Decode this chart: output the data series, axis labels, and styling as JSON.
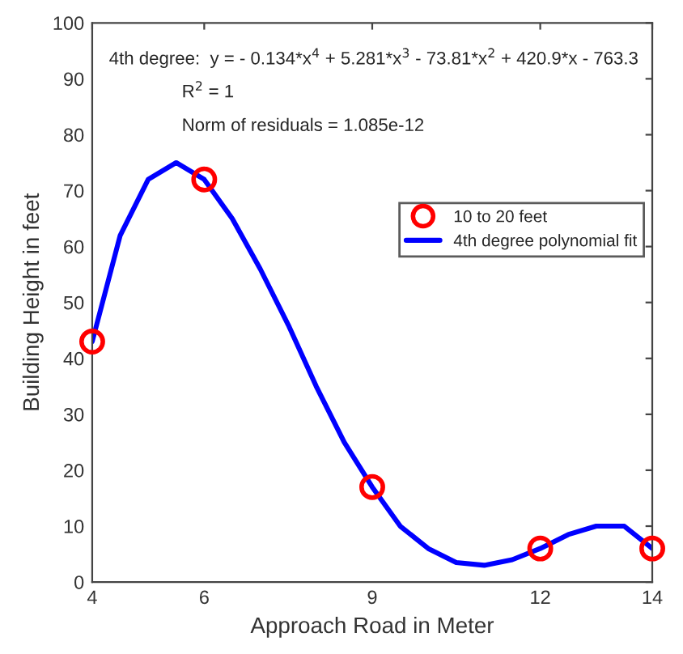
{
  "chart_data": {
    "type": "scatter",
    "xlabel": "Approach Road in Meter",
    "ylabel": "Building Height in feet",
    "xlim": [
      4,
      14
    ],
    "xticks": [
      4,
      6,
      9,
      12,
      14
    ],
    "ylim": [
      0,
      100
    ],
    "yticks": [
      0,
      10,
      20,
      30,
      40,
      50,
      60,
      70,
      80,
      90,
      100
    ],
    "grid": false,
    "legend": "right",
    "annotations": [
      "4th degree:  y = - 0.134*x$^{4}$ + 5.281*x$^{3}$ - 73.81*x$^{2}$ + 420.9*x - 763.3",
      "R$^{2}$ = 1",
      "Norm of residuals = 1.085e-12"
    ],
    "series": [
      {
        "name": "10 to 20 feet",
        "color": "#ff0000",
        "marker": "circle",
        "x": [
          4,
          6,
          9,
          12,
          14
        ],
        "values": [
          43,
          72,
          17,
          6,
          6
        ]
      },
      {
        "name": "4th degree polynomial fit",
        "type": "line",
        "color": "#0000ff",
        "line_style": "solid",
        "marker": "none",
        "x": [
          4,
          4.5,
          5,
          5.5,
          6,
          6.5,
          7,
          7.5,
          8,
          8.5,
          9,
          9.5,
          10,
          10.5,
          11,
          11.5,
          12,
          12.5,
          13,
          13.5,
          14
        ],
        "values": [
          43,
          62,
          72,
          75,
          72,
          65,
          56,
          46,
          35,
          25,
          17,
          10,
          6,
          3.5,
          3,
          4,
          6,
          8.5,
          10,
          10,
          6
        ]
      }
    ]
  }
}
